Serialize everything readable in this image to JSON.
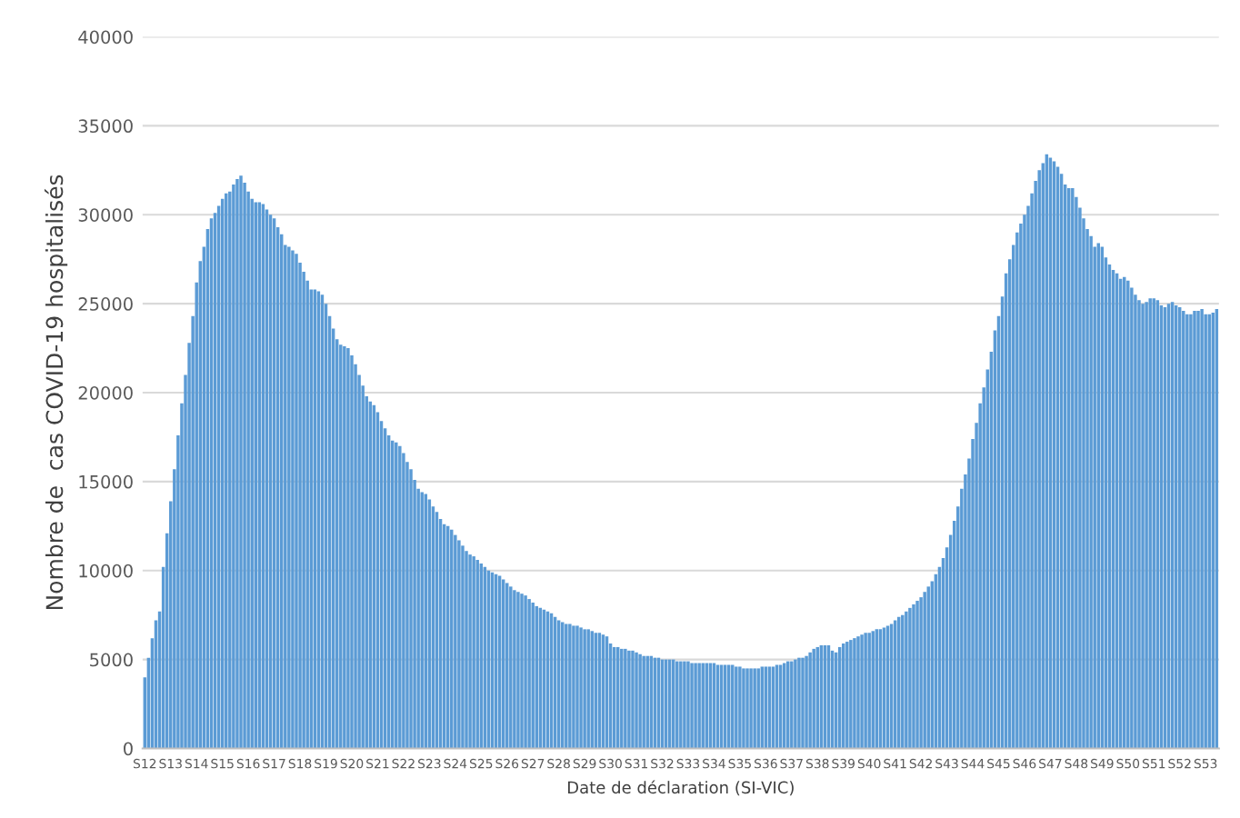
{
  "chart_data": {
    "type": "bar",
    "xlabel": "Date de déclaration (SI-VIC)",
    "ylabel": "Nombre de  cas COVID-19 hospitalisés",
    "categories": [
      "S12",
      null,
      null,
      null,
      null,
      null,
      null,
      "S13",
      null,
      null,
      null,
      null,
      null,
      null,
      "S14",
      null,
      null,
      null,
      null,
      null,
      null,
      "S15",
      null,
      null,
      null,
      null,
      null,
      null,
      "S16",
      null,
      null,
      null,
      null,
      null,
      null,
      "S17",
      null,
      null,
      null,
      null,
      null,
      null,
      "S18",
      null,
      null,
      null,
      null,
      null,
      null,
      "S19",
      null,
      null,
      null,
      null,
      null,
      null,
      "S20",
      null,
      null,
      null,
      null,
      null,
      null,
      "S21",
      null,
      null,
      null,
      null,
      null,
      null,
      "S22",
      null,
      null,
      null,
      null,
      null,
      null,
      "S23",
      null,
      null,
      null,
      null,
      null,
      null,
      "S24",
      null,
      null,
      null,
      null,
      null,
      null,
      "S25",
      null,
      null,
      null,
      null,
      null,
      null,
      "S26",
      null,
      null,
      null,
      null,
      null,
      null,
      "S27",
      null,
      null,
      null,
      null,
      null,
      null,
      "S28",
      null,
      null,
      null,
      null,
      null,
      null,
      "S29",
      null,
      null,
      null,
      null,
      null,
      null,
      "S30",
      null,
      null,
      null,
      null,
      null,
      null,
      "S31",
      null,
      null,
      null,
      null,
      null,
      null,
      "S32",
      null,
      null,
      null,
      null,
      null,
      null,
      "S33",
      null,
      null,
      null,
      null,
      null,
      null,
      "S34",
      null,
      null,
      null,
      null,
      null,
      null,
      "S35",
      null,
      null,
      null,
      null,
      null,
      null,
      "S36",
      null,
      null,
      null,
      null,
      null,
      null,
      "S37",
      null,
      null,
      null,
      null,
      null,
      null,
      "S38",
      null,
      null,
      null,
      null,
      null,
      null,
      "S39",
      null,
      null,
      null,
      null,
      null,
      null,
      "S40",
      null,
      null,
      null,
      null,
      null,
      null,
      "S41",
      null,
      null,
      null,
      null,
      null,
      null,
      "S42",
      null,
      null,
      null,
      null,
      null,
      null,
      "S43",
      null,
      null,
      null,
      null,
      null,
      null,
      "S44",
      null,
      null,
      null,
      null,
      null,
      null,
      "S45",
      null,
      null,
      null,
      null,
      null,
      null,
      "S46",
      null,
      null,
      null,
      null,
      null,
      null,
      "S47",
      null,
      null,
      null,
      null,
      null,
      null,
      "S48",
      null,
      null,
      null,
      null,
      null,
      null,
      "S49",
      null,
      null,
      null,
      null,
      null,
      null,
      "S50",
      null,
      null,
      null,
      null,
      null,
      null,
      "S51",
      null,
      null,
      null,
      null,
      null,
      null,
      "S52",
      null,
      null,
      null,
      null,
      null,
      null,
      "S53",
      null,
      null,
      null
    ],
    "series": [
      {
        "color": "#5b9bd5",
        "values": [
          4000,
          5100,
          6200,
          7200,
          7700,
          10200,
          12100,
          13900,
          15700,
          17600,
          19400,
          21000,
          22800,
          24300,
          26200,
          27400,
          28200,
          29200,
          29800,
          30100,
          30500,
          30900,
          31200,
          31300,
          31700,
          32000,
          32200,
          31800,
          31300,
          30900,
          30700,
          30700,
          30600,
          30300,
          30000,
          29800,
          29300,
          28900,
          28300,
          28200,
          28000,
          27800,
          27300,
          26800,
          26300,
          25800,
          25800,
          25700,
          25500,
          25000,
          24300,
          23600,
          23000,
          22700,
          22600,
          22500,
          22100,
          21600,
          21000,
          20400,
          19800,
          19500,
          19300,
          18900,
          18400,
          18000,
          17600,
          17300,
          17200,
          17000,
          16600,
          16100,
          15700,
          15100,
          14600,
          14400,
          14300,
          14000,
          13600,
          13300,
          12900,
          12600,
          12500,
          12300,
          12000,
          11700,
          11400,
          11100,
          10900,
          10800,
          10600,
          10400,
          10200,
          10000,
          9900,
          9800,
          9700,
          9500,
          9300,
          9100,
          8900,
          8800,
          8700,
          8600,
          8400,
          8200,
          8000,
          7900,
          7800,
          7700,
          7600,
          7400,
          7200,
          7100,
          7000,
          7000,
          6900,
          6900,
          6800,
          6700,
          6700,
          6600,
          6500,
          6500,
          6400,
          6300,
          5900,
          5700,
          5700,
          5600,
          5600,
          5500,
          5500,
          5400,
          5300,
          5200,
          5200,
          5200,
          5100,
          5100,
          5000,
          5000,
          5000,
          5000,
          4900,
          4900,
          4900,
          4900,
          4800,
          4800,
          4800,
          4800,
          4800,
          4800,
          4800,
          4700,
          4700,
          4700,
          4700,
          4700,
          4600,
          4600,
          4500,
          4500,
          4500,
          4500,
          4500,
          4600,
          4600,
          4600,
          4600,
          4700,
          4700,
          4800,
          4900,
          4900,
          5000,
          5100,
          5100,
          5200,
          5400,
          5600,
          5700,
          5800,
          5800,
          5800,
          5500,
          5400,
          5700,
          5900,
          6000,
          6100,
          6200,
          6300,
          6400,
          6500,
          6500,
          6600,
          6700,
          6700,
          6800,
          6900,
          7000,
          7200,
          7400,
          7500,
          7700,
          7900,
          8100,
          8300,
          8500,
          8800,
          9100,
          9400,
          9800,
          10200,
          10700,
          11300,
          12000,
          12800,
          13600,
          14600,
          15400,
          16300,
          17400,
          18300,
          19400,
          20300,
          21300,
          22300,
          23500,
          24300,
          25400,
          26700,
          27500,
          28300,
          29000,
          29500,
          30000,
          30500,
          31200,
          31900,
          32500,
          32900,
          33400,
          33200,
          33000,
          32700,
          32300,
          31700,
          31500,
          31500,
          31000,
          30400,
          29800,
          29200,
          28800,
          28200,
          28400,
          28200,
          27600,
          27200,
          26900,
          26700,
          26400,
          26500,
          26300,
          25900,
          25500,
          25200,
          25000,
          25100,
          25300,
          25300,
          25200,
          24900,
          24800,
          25000,
          25100,
          24900,
          24800,
          24600,
          24400,
          24400,
          24600,
          24600,
          24700,
          24400,
          24400,
          24500,
          24700
        ]
      }
    ],
    "ylim": [
      0,
      40000
    ],
    "yticks": [
      0,
      5000,
      10000,
      15000,
      20000,
      25000,
      30000,
      35000,
      40000
    ],
    "grid": "y",
    "legend": false
  }
}
